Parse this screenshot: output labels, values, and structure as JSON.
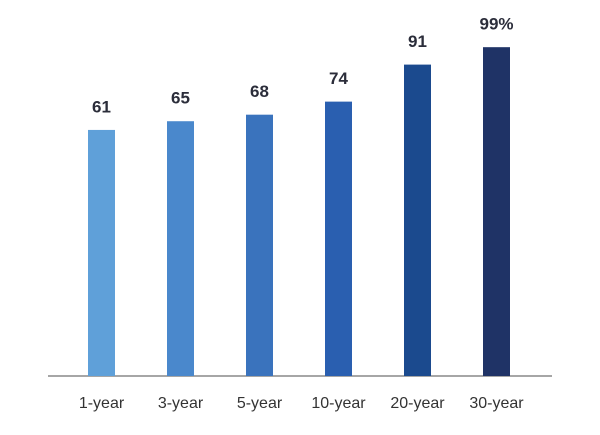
{
  "chart_data": {
    "type": "bar",
    "categories": [
      "1-year",
      "3-year",
      "5-year",
      "10-year",
      "20-year",
      "30-year"
    ],
    "values": [
      61,
      65,
      68,
      74,
      91,
      99
    ],
    "value_labels": [
      "61",
      "65",
      "68",
      "74",
      "91",
      "99%"
    ],
    "colors": [
      "#5fa0d9",
      "#4a88cc",
      "#3a73bd",
      "#2a5fb0",
      "#1b4a8e",
      "#1f3366"
    ],
    "ylim": [
      -52,
      100
    ]
  }
}
